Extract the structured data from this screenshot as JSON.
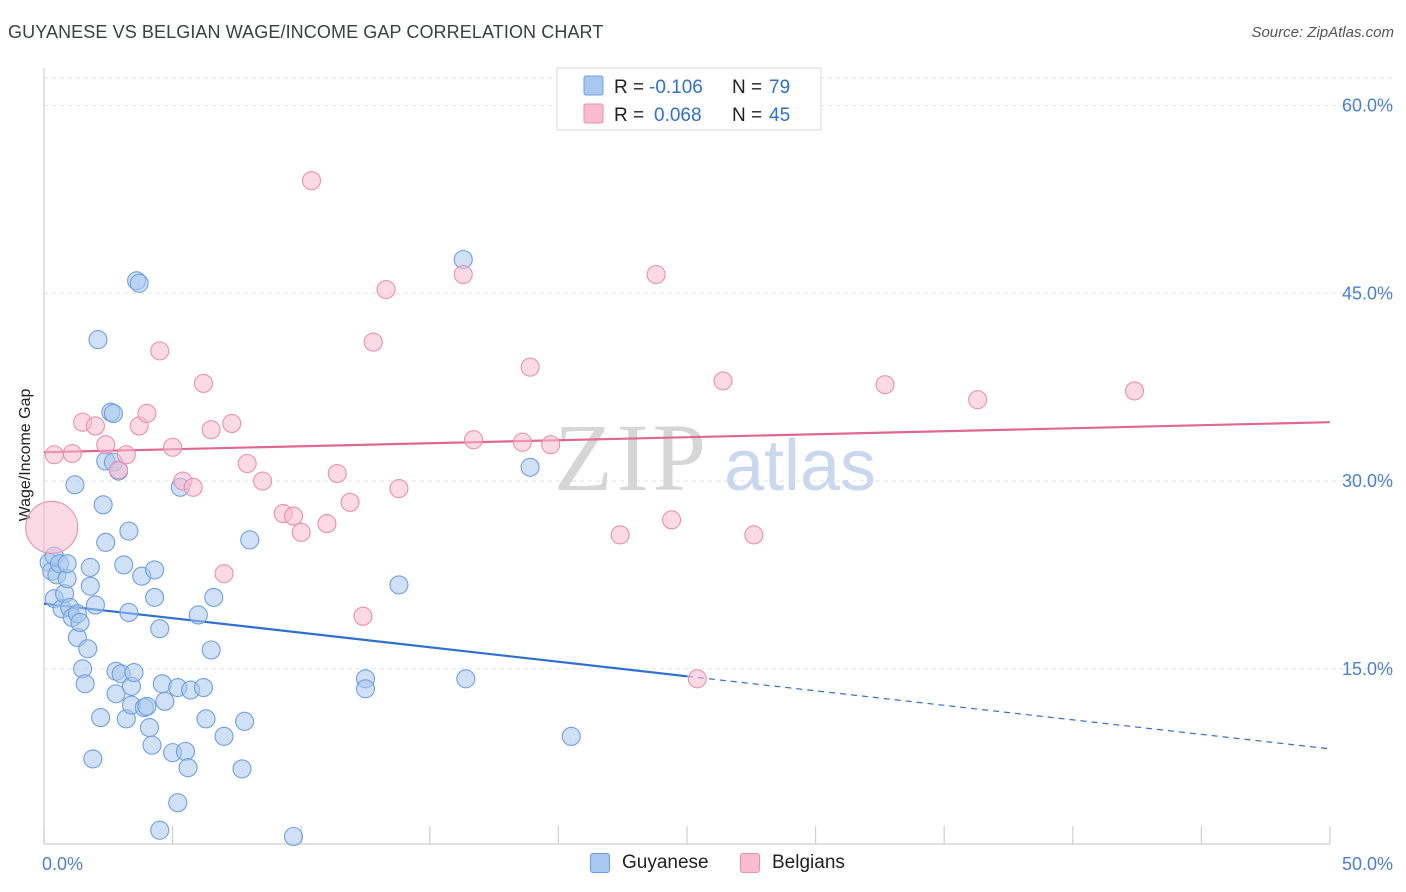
{
  "title": "GUYANESE VS BELGIAN WAGE/INCOME GAP CORRELATION CHART",
  "source": "Source: ZipAtlas.com",
  "watermark": {
    "zip": "ZIP",
    "atlas": "atlas"
  },
  "legend": {
    "rows": [
      {
        "r_label": "R =",
        "r_value": "-0.106",
        "n_label": "N =",
        "n_value": "79",
        "color": "#a9c8f0",
        "stroke": "#6e9fe0"
      },
      {
        "r_label": "R =",
        "r_value": "0.068",
        "n_label": "N =",
        "n_value": "45",
        "color": "#f7bcd0",
        "stroke": "#ea8fb0"
      }
    ]
  },
  "bottom_legend": [
    {
      "label": "Guyanese",
      "color": "#a9c8f0",
      "stroke": "#6e9fe0"
    },
    {
      "label": "Belgians",
      "color": "#f7bcd0",
      "stroke": "#ea8fb0"
    }
  ],
  "chart_data": {
    "type": "scatter",
    "title": "GUYANESE VS BELGIAN WAGE/INCOME GAP CORRELATION CHART",
    "xlabel": "",
    "ylabel": "Wage/Income Gap",
    "xlim": [
      0,
      50
    ],
    "ylim": [
      1.0,
      63.0
    ],
    "x_tick_labels": [
      "0.0%",
      "50.0%"
    ],
    "y_ticks": [
      15,
      30,
      45,
      60
    ],
    "y_tick_labels": [
      "15.0%",
      "30.0%",
      "45.0%",
      "60.0%"
    ],
    "grid": true,
    "legend_position": "top-center",
    "series": [
      {
        "name": "Guyanese",
        "color": "#6e9fe0",
        "fill": "#a9c8f0",
        "trend": {
          "x0": 0,
          "y0": 20.2,
          "x1": 25,
          "y1": 14.4,
          "dashed_to_x": 50,
          "dashed_to_y": 8.6,
          "color": "#2f6fd0"
        },
        "points": [
          [
            0.2,
            23.5
          ],
          [
            0.3,
            22.8
          ],
          [
            0.4,
            24.0
          ],
          [
            0.4,
            20.6
          ],
          [
            0.5,
            22.5
          ],
          [
            0.6,
            23.4
          ],
          [
            0.7,
            19.8
          ],
          [
            0.8,
            21.0
          ],
          [
            0.9,
            22.2
          ],
          [
            0.9,
            23.4
          ],
          [
            1.0,
            19.9
          ],
          [
            1.1,
            19.1
          ],
          [
            1.2,
            29.7
          ],
          [
            1.3,
            19.4
          ],
          [
            1.3,
            17.5
          ],
          [
            1.4,
            18.7
          ],
          [
            1.5,
            15.0
          ],
          [
            1.6,
            13.8
          ],
          [
            1.7,
            16.6
          ],
          [
            1.8,
            23.1
          ],
          [
            1.8,
            21.6
          ],
          [
            1.9,
            7.8
          ],
          [
            2.0,
            20.1
          ],
          [
            2.1,
            41.3
          ],
          [
            2.2,
            11.1
          ],
          [
            2.3,
            28.1
          ],
          [
            2.4,
            25.1
          ],
          [
            2.4,
            31.6
          ],
          [
            2.6,
            35.5
          ],
          [
            2.7,
            35.4
          ],
          [
            2.7,
            31.5
          ],
          [
            2.8,
            14.8
          ],
          [
            2.8,
            13.0
          ],
          [
            2.9,
            30.8
          ],
          [
            3.0,
            14.6
          ],
          [
            3.1,
            23.3
          ],
          [
            3.2,
            11.0
          ],
          [
            3.3,
            26.0
          ],
          [
            3.3,
            19.5
          ],
          [
            3.4,
            12.1
          ],
          [
            3.4,
            13.6
          ],
          [
            3.5,
            14.7
          ],
          [
            3.6,
            46.0
          ],
          [
            3.7,
            45.8
          ],
          [
            3.8,
            22.4
          ],
          [
            3.9,
            11.9
          ],
          [
            4.0,
            12.0
          ],
          [
            4.1,
            10.3
          ],
          [
            4.2,
            8.9
          ],
          [
            4.3,
            22.9
          ],
          [
            4.3,
            20.7
          ],
          [
            4.5,
            18.2
          ],
          [
            4.6,
            13.8
          ],
          [
            4.7,
            12.4
          ],
          [
            5.0,
            8.3
          ],
          [
            5.2,
            13.5
          ],
          [
            5.2,
            4.3
          ],
          [
            5.3,
            29.5
          ],
          [
            5.5,
            8.4
          ],
          [
            5.6,
            7.1
          ],
          [
            5.7,
            13.3
          ],
          [
            6.0,
            19.3
          ],
          [
            6.2,
            13.5
          ],
          [
            6.3,
            11.0
          ],
          [
            6.5,
            16.5
          ],
          [
            6.6,
            20.7
          ],
          [
            7.0,
            9.6
          ],
          [
            7.7,
            7.0
          ],
          [
            7.8,
            10.8
          ],
          [
            8.0,
            25.3
          ],
          [
            9.7,
            1.6
          ],
          [
            12.5,
            14.2
          ],
          [
            12.5,
            13.4
          ],
          [
            13.8,
            21.7
          ],
          [
            16.3,
            47.7
          ],
          [
            16.4,
            14.2
          ],
          [
            18.9,
            31.1
          ],
          [
            20.5,
            9.6
          ],
          [
            4.5,
            2.1
          ]
        ]
      },
      {
        "name": "Belgians",
        "color": "#ea8fb0",
        "fill": "#f7bcd0",
        "trend": {
          "x0": 0,
          "y0": 32.3,
          "x1": 50,
          "y1": 34.7,
          "color": "#e06890"
        },
        "points": [
          [
            0.4,
            32.1
          ],
          [
            1.1,
            32.2
          ],
          [
            1.5,
            34.7
          ],
          [
            2.0,
            34.4
          ],
          [
            2.4,
            32.9
          ],
          [
            2.9,
            30.9
          ],
          [
            3.2,
            32.1
          ],
          [
            3.7,
            34.4
          ],
          [
            4.0,
            35.4
          ],
          [
            4.5,
            40.4
          ],
          [
            5.0,
            32.7
          ],
          [
            5.4,
            30.0
          ],
          [
            5.8,
            29.5
          ],
          [
            6.2,
            37.8
          ],
          [
            6.5,
            34.1
          ],
          [
            7.0,
            22.6
          ],
          [
            7.3,
            34.6
          ],
          [
            7.9,
            31.4
          ],
          [
            8.5,
            30.0
          ],
          [
            9.3,
            27.4
          ],
          [
            9.7,
            27.2
          ],
          [
            10.0,
            25.9
          ],
          [
            10.4,
            54.0
          ],
          [
            11.0,
            26.6
          ],
          [
            11.4,
            30.6
          ],
          [
            11.9,
            28.3
          ],
          [
            12.4,
            19.2
          ],
          [
            12.8,
            41.1
          ],
          [
            13.3,
            45.3
          ],
          [
            13.8,
            29.4
          ],
          [
            16.3,
            46.5
          ],
          [
            16.7,
            33.3
          ],
          [
            18.6,
            33.1
          ],
          [
            18.9,
            39.1
          ],
          [
            19.7,
            32.9
          ],
          [
            22.4,
            25.7
          ],
          [
            23.8,
            46.5
          ],
          [
            24.4,
            26.9
          ],
          [
            25.4,
            14.2
          ],
          [
            26.4,
            38.0
          ],
          [
            27.6,
            25.7
          ],
          [
            32.7,
            37.7
          ],
          [
            36.3,
            36.5
          ],
          [
            42.4,
            37.2
          ],
          [
            0.3,
            26.3
          ]
        ]
      }
    ]
  }
}
